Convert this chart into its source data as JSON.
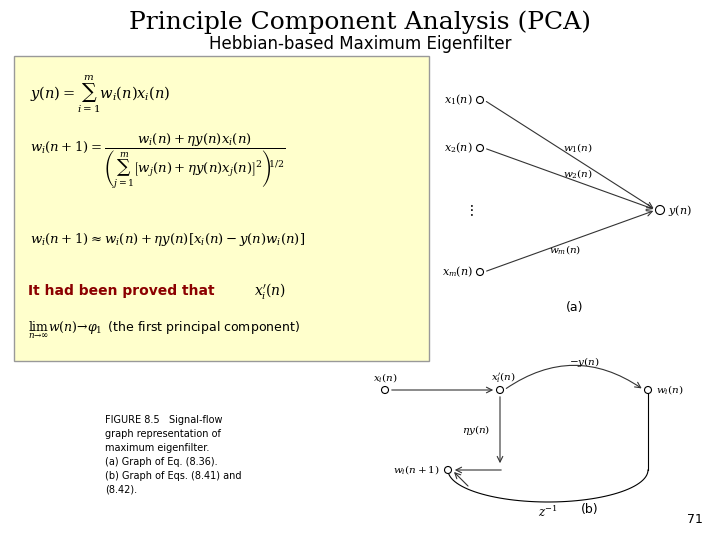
{
  "title": "Principle Component Analysis (PCA)",
  "subtitle": "Hebbian-based Maximum Eigenfilter",
  "title_fontsize": 18,
  "subtitle_fontsize": 12,
  "page_number": "71",
  "bg_color": "#ffffff",
  "box_bg_color": "#ffffcc",
  "box_edge_color": "#999999",
  "font_color": "#000000",
  "bold_red": "#8B0000",
  "figure_caption": "FIGURE 8.5   Signal-flow\ngraph representation of\nmaximum eigenfilter.\n(a) Graph of Eq. (8.36).\n(b) Graph of Eqs. (8.41) and\n(8.42)."
}
